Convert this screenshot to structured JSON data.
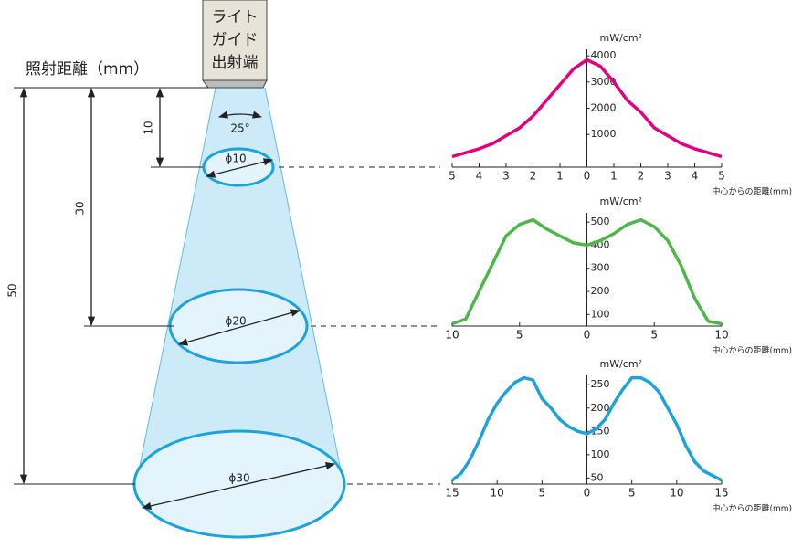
{
  "diagram": {
    "light_guide": [
      "ライト",
      "ガイド",
      "出射端"
    ],
    "distance_label": "照射距離（mm）",
    "angle": "25°",
    "distances": [
      "10",
      "30",
      "50"
    ],
    "diameters": [
      "ϕ10",
      "ϕ20",
      "ϕ30"
    ]
  },
  "chart_data": [
    {
      "type": "line",
      "y_label": "mW/cm²",
      "x_label": "中心からの距離(mm)",
      "x": [
        -5,
        -4.5,
        -4,
        -3.5,
        -3,
        -2.5,
        -2,
        -1.5,
        -1,
        -0.5,
        0,
        0.5,
        1,
        1.5,
        2,
        2.5,
        3,
        3.5,
        4,
        4.5,
        5
      ],
      "series": [
        {
          "color": "#e5007f",
          "values": [
            150,
            300,
            450,
            650,
            950,
            1250,
            1700,
            2300,
            2900,
            3500,
            3850,
            3600,
            3000,
            2300,
            1850,
            1250,
            950,
            650,
            450,
            300,
            150
          ]
        }
      ],
      "xlim": [
        -5,
        5
      ],
      "xticks": [
        {
          "value": -5,
          "label": "5"
        },
        {
          "value": -4,
          "label": "4"
        },
        {
          "value": -3,
          "label": "3"
        },
        {
          "value": -2,
          "label": "2"
        },
        {
          "value": -1,
          "label": "1"
        },
        0,
        1,
        2,
        3,
        4,
        5
      ],
      "ylim": [
        -250,
        4250
      ],
      "yticks": [
        1000,
        2000,
        3000,
        4000
      ]
    },
    {
      "type": "line",
      "y_label": "mW/cm²",
      "x_label": "中心からの距離(mm)",
      "x": [
        -10,
        -9,
        -8,
        -7,
        -6,
        -5,
        -4,
        -3,
        -2,
        -1,
        0,
        1,
        2,
        3,
        4,
        5,
        6,
        7,
        8,
        9,
        10
      ],
      "series": [
        {
          "color": "#4db848",
          "values": [
            60,
            80,
            200,
            320,
            440,
            490,
            510,
            470,
            440,
            410,
            400,
            420,
            450,
            490,
            510,
            480,
            420,
            310,
            170,
            70,
            60
          ]
        }
      ],
      "xlim": [
        -10,
        10
      ],
      "xticks": [
        {
          "value": -10,
          "label": "10"
        },
        {
          "value": -5,
          "label": "5"
        },
        0,
        5,
        10
      ],
      "ylim": [
        50,
        540
      ],
      "yticks": [
        100,
        200,
        300,
        400,
        500
      ]
    },
    {
      "type": "line",
      "y_label": "mW/cm²",
      "x_label": "中心からの距離(mm)",
      "x": [
        -15,
        -14,
        -13,
        -12,
        -11,
        -10,
        -9,
        -8,
        -7,
        -6,
        -5,
        -4,
        -3,
        -2,
        -1,
        0,
        1,
        2,
        3,
        4,
        5,
        6,
        7,
        8,
        9,
        10,
        11,
        12,
        13,
        14,
        15
      ],
      "series": [
        {
          "color": "#1ca3dc",
          "values": [
            45,
            60,
            90,
            130,
            175,
            210,
            235,
            255,
            265,
            260,
            220,
            200,
            175,
            160,
            150,
            145,
            155,
            175,
            210,
            240,
            265,
            265,
            255,
            235,
            200,
            165,
            120,
            85,
            65,
            55,
            45
          ]
        }
      ],
      "xlim": [
        -15,
        15
      ],
      "xticks": [
        {
          "value": -15,
          "label": "15"
        },
        {
          "value": -10,
          "label": "10"
        },
        {
          "value": -5,
          "label": "5"
        },
        0,
        5,
        10,
        15
      ],
      "ylim": [
        37,
        270
      ],
      "yticks": [
        50,
        100,
        150,
        200,
        250
      ]
    }
  ]
}
